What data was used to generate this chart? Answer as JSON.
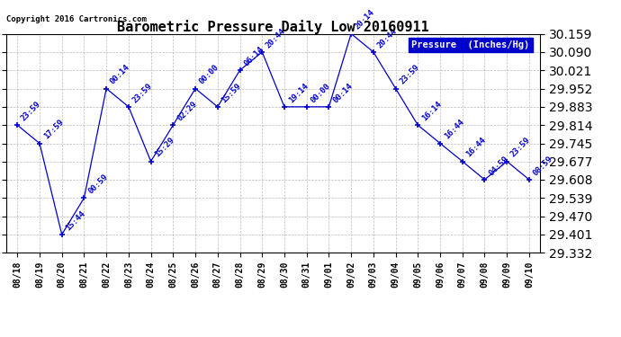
{
  "title": "Barometric Pressure Daily Low 20160911",
  "copyright": "Copyright 2016 Cartronics.com",
  "legend_label": "Pressure  (Inches/Hg)",
  "background_color": "#ffffff",
  "plot_bg_color": "#ffffff",
  "grid_color": "#aaaaaa",
  "line_color": "#0000cc",
  "marker_color": "#0000cc",
  "label_color": "#0000cc",
  "dates": [
    "08/18",
    "08/19",
    "08/20",
    "08/21",
    "08/22",
    "08/23",
    "08/24",
    "08/25",
    "08/26",
    "08/27",
    "08/28",
    "08/29",
    "08/30",
    "08/31",
    "09/01",
    "09/02",
    "09/03",
    "09/04",
    "09/05",
    "09/06",
    "09/07",
    "09/08",
    "09/09",
    "09/10"
  ],
  "values": [
    29.814,
    29.745,
    29.401,
    29.539,
    29.952,
    29.883,
    29.677,
    29.814,
    29.952,
    29.883,
    30.021,
    30.09,
    29.883,
    29.883,
    29.883,
    30.159,
    30.09,
    29.952,
    29.814,
    29.745,
    29.677,
    29.608,
    29.677,
    29.608
  ],
  "time_labels": [
    "23:59",
    "17:59",
    "15:44",
    "00:59",
    "00:14",
    "23:59",
    "15:29",
    "02:29",
    "00:00",
    "15:59",
    "06:14",
    "20:44",
    "19:14",
    "00:00",
    "00:14",
    "20:14",
    "20:44",
    "23:59",
    "16:14",
    "16:44",
    "16:44",
    "04:59",
    "23:59",
    "08:59"
  ],
  "ylim_min": 29.332,
  "ylim_max": 30.159,
  "yticks": [
    29.332,
    29.401,
    29.47,
    29.539,
    29.608,
    29.677,
    29.745,
    29.814,
    29.883,
    29.952,
    30.021,
    30.09,
    30.159
  ],
  "title_fontsize": 11,
  "tick_fontsize": 7,
  "label_fontsize": 6.5,
  "copyright_fontsize": 6.5
}
